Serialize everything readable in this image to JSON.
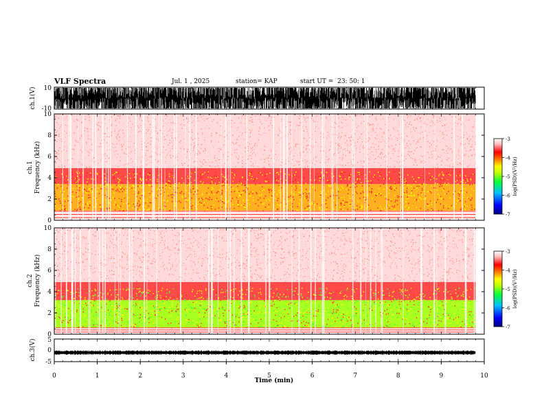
{
  "header": {
    "title": "VLF Spectra",
    "date": "Jul. 1 , 2025",
    "station": "station= KAP",
    "start_ut": "start UT =  23: 50: 1"
  },
  "chart_data": [
    {
      "type": "line",
      "panel": "ch1-waveform",
      "ylabel": "ch.1(V)",
      "ylim": [
        -10,
        10
      ],
      "yticks": [
        "10",
        "-10"
      ],
      "xlim": [
        0,
        10
      ],
      "note_values": "dense waveform saturating between -10 and 10 V over 0 to 9.8 min"
    },
    {
      "type": "heatmap",
      "panel": "ch1-spectrogram",
      "ylabel_line1": "ch.1",
      "ylabel_line2": "Frequency (kHz)",
      "ylim": [
        0,
        10
      ],
      "yticks": [
        "0",
        "2",
        "4",
        "6",
        "8",
        "10"
      ],
      "xlim": [
        0,
        10
      ],
      "data_end_min": 9.8,
      "colorbar": {
        "label": "log(PSD)(V²/Hz)",
        "ticks": [
          "-3",
          "-4",
          "-5",
          "-6",
          "-7"
        ],
        "range": [
          -7,
          -3
        ],
        "colors": [
          "#000080",
          "#0000ff",
          "#00c0ff",
          "#00ff40",
          "#c0ff00",
          "#ffff00",
          "#ff8000",
          "#ff0000",
          "#ffc0c0",
          "#ffffff"
        ]
      },
      "bands": [
        {
          "from_khz": 0,
          "to_khz": 0.9,
          "level": "horizontal lines, white/red"
        },
        {
          "from_khz": 0.9,
          "to_khz": 3.4,
          "level": "yellow-orange, about -4.5"
        },
        {
          "from_khz": 3.4,
          "to_khz": 4.8,
          "level": "red, about -4"
        },
        {
          "from_khz": 4.8,
          "to_khz": 10,
          "level": "light red speckle, about -3.5"
        }
      ]
    },
    {
      "type": "heatmap",
      "panel": "ch2-spectrogram",
      "ylabel_line1": "ch.2",
      "ylabel_line2": "Frequency (kHz)",
      "ylim": [
        0,
        10
      ],
      "yticks": [
        "0",
        "2",
        "4",
        "6",
        "8",
        "10"
      ],
      "xlim": [
        0,
        10
      ],
      "data_end_min": 9.8,
      "colorbar": {
        "label": "log(PSD)(V²/Hz)",
        "ticks": [
          "-3",
          "-4",
          "-5",
          "-6",
          "-7"
        ],
        "range": [
          -7,
          -3
        ]
      },
      "bands": [
        {
          "from_khz": 0,
          "to_khz": 0.6,
          "level": "horizontal lines, white/red"
        },
        {
          "from_khz": 0.6,
          "to_khz": 3.2,
          "level": "green-yellow, about -5"
        },
        {
          "from_khz": 3.2,
          "to_khz": 5,
          "level": "red with yellow bursts, about -4"
        },
        {
          "from_khz": 5,
          "to_khz": 10,
          "level": "light red speckle, about -3.5"
        }
      ]
    },
    {
      "type": "line",
      "panel": "ch3-waveform",
      "ylabel": "ch.3(V)",
      "ylim": [
        -5,
        5
      ],
      "yticks": [
        "5",
        "0",
        "-5"
      ],
      "xlim": [
        0,
        10
      ],
      "xlabel": "Time (min)",
      "xticks": [
        "0",
        "1",
        "2",
        "3",
        "4",
        "5",
        "6",
        "7",
        "8",
        "9",
        "10"
      ],
      "note_values": "constant offset near -1 V with small noise, 0 to 9.8 min"
    }
  ]
}
